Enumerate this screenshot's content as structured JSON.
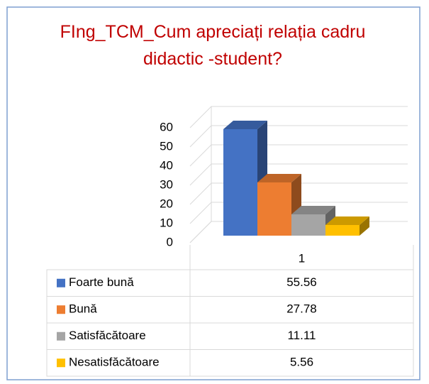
{
  "chart_data": {
    "type": "bar3d",
    "title": "FIng_TCM_Cum apreciați relația cadru didactic -student?",
    "categories": [
      "1"
    ],
    "series": [
      {
        "name": "Foarte bună",
        "color": "#4472c4",
        "values": [
          55.56
        ]
      },
      {
        "name": "Bună",
        "color": "#ed7d31",
        "values": [
          27.78
        ]
      },
      {
        "name": "Satisfăcătoare",
        "color": "#a5a5a5",
        "values": [
          11.11
        ]
      },
      {
        "name": "Nesatisfăcătoare",
        "color": "#ffc000",
        "values": [
          5.56
        ]
      }
    ],
    "ylim": [
      0,
      60
    ],
    "yticks": [
      0,
      10,
      20,
      30,
      40,
      50,
      60
    ],
    "grid": true,
    "data_table": true
  }
}
